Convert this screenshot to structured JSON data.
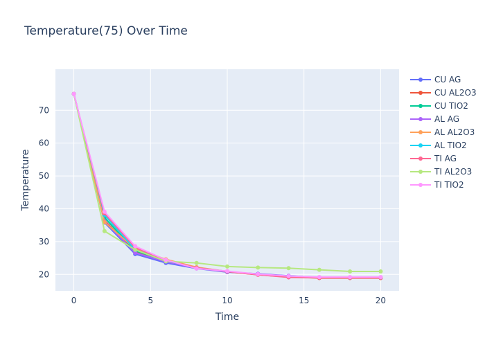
{
  "chart_data": {
    "type": "line",
    "title": "Temperature(75) Over Time",
    "xlabel": "Time",
    "ylabel": "Temperature",
    "xlim": [
      -1.2,
      21.2
    ],
    "ylim": [
      15,
      82.5
    ],
    "xticks": [
      0,
      5,
      10,
      15,
      20
    ],
    "yticks": [
      20,
      30,
      40,
      50,
      60,
      70
    ],
    "grid": true,
    "legend_position": "right",
    "x": [
      0,
      2,
      4,
      6,
      8,
      10,
      12,
      14,
      16,
      18,
      20
    ],
    "series": [
      {
        "name": "CU AG",
        "color": "#636efa",
        "values": [
          75,
          35.8,
          26.2,
          23.5,
          21.8,
          20.7,
          20.2,
          19.6,
          19.1,
          19.0,
          19.0
        ]
      },
      {
        "name": "CU AL2O3",
        "color": "#ef553b",
        "values": [
          75,
          36.5,
          26.8,
          24.0,
          22.0,
          20.8,
          19.9,
          19.2,
          18.9,
          18.9,
          18.9
        ]
      },
      {
        "name": "CU TIO2",
        "color": "#00cc96",
        "values": [
          75,
          37.3,
          27.2,
          24.2,
          22.1,
          20.9,
          20.0,
          19.4,
          19.1,
          19.0,
          19.0
        ]
      },
      {
        "name": "AL AG",
        "color": "#ab63fa",
        "values": [
          75,
          36.2,
          26.6,
          23.9,
          21.9,
          20.8,
          20.1,
          19.5,
          19.0,
          19.0,
          19.0
        ]
      },
      {
        "name": "AL AL2O3",
        "color": "#ffa15a",
        "values": [
          75,
          35.9,
          27.8,
          24.6,
          22.2,
          20.9,
          20.0,
          19.3,
          19.0,
          19.0,
          19.0
        ]
      },
      {
        "name": "AL TIO2",
        "color": "#19d3f3",
        "values": [
          75,
          38.1,
          27.5,
          24.2,
          22.0,
          20.9,
          20.0,
          19.4,
          19.1,
          19.0,
          19.0
        ]
      },
      {
        "name": "TI AG",
        "color": "#ff6692",
        "values": [
          75,
          38.6,
          28.2,
          24.3,
          22.0,
          20.9,
          19.9,
          19.1,
          19.0,
          19.0,
          19.0
        ]
      },
      {
        "name": "TI AL2O3",
        "color": "#b6e880",
        "values": [
          75,
          33.2,
          27.5,
          24.0,
          23.5,
          22.4,
          22.1,
          21.9,
          21.4,
          20.9,
          20.9
        ]
      },
      {
        "name": "TI TIO2",
        "color": "#ff97ff",
        "values": [
          75,
          39.1,
          28.6,
          24.4,
          21.8,
          21.0,
          20.1,
          19.5,
          19.2,
          19.2,
          19.2
        ]
      }
    ]
  }
}
